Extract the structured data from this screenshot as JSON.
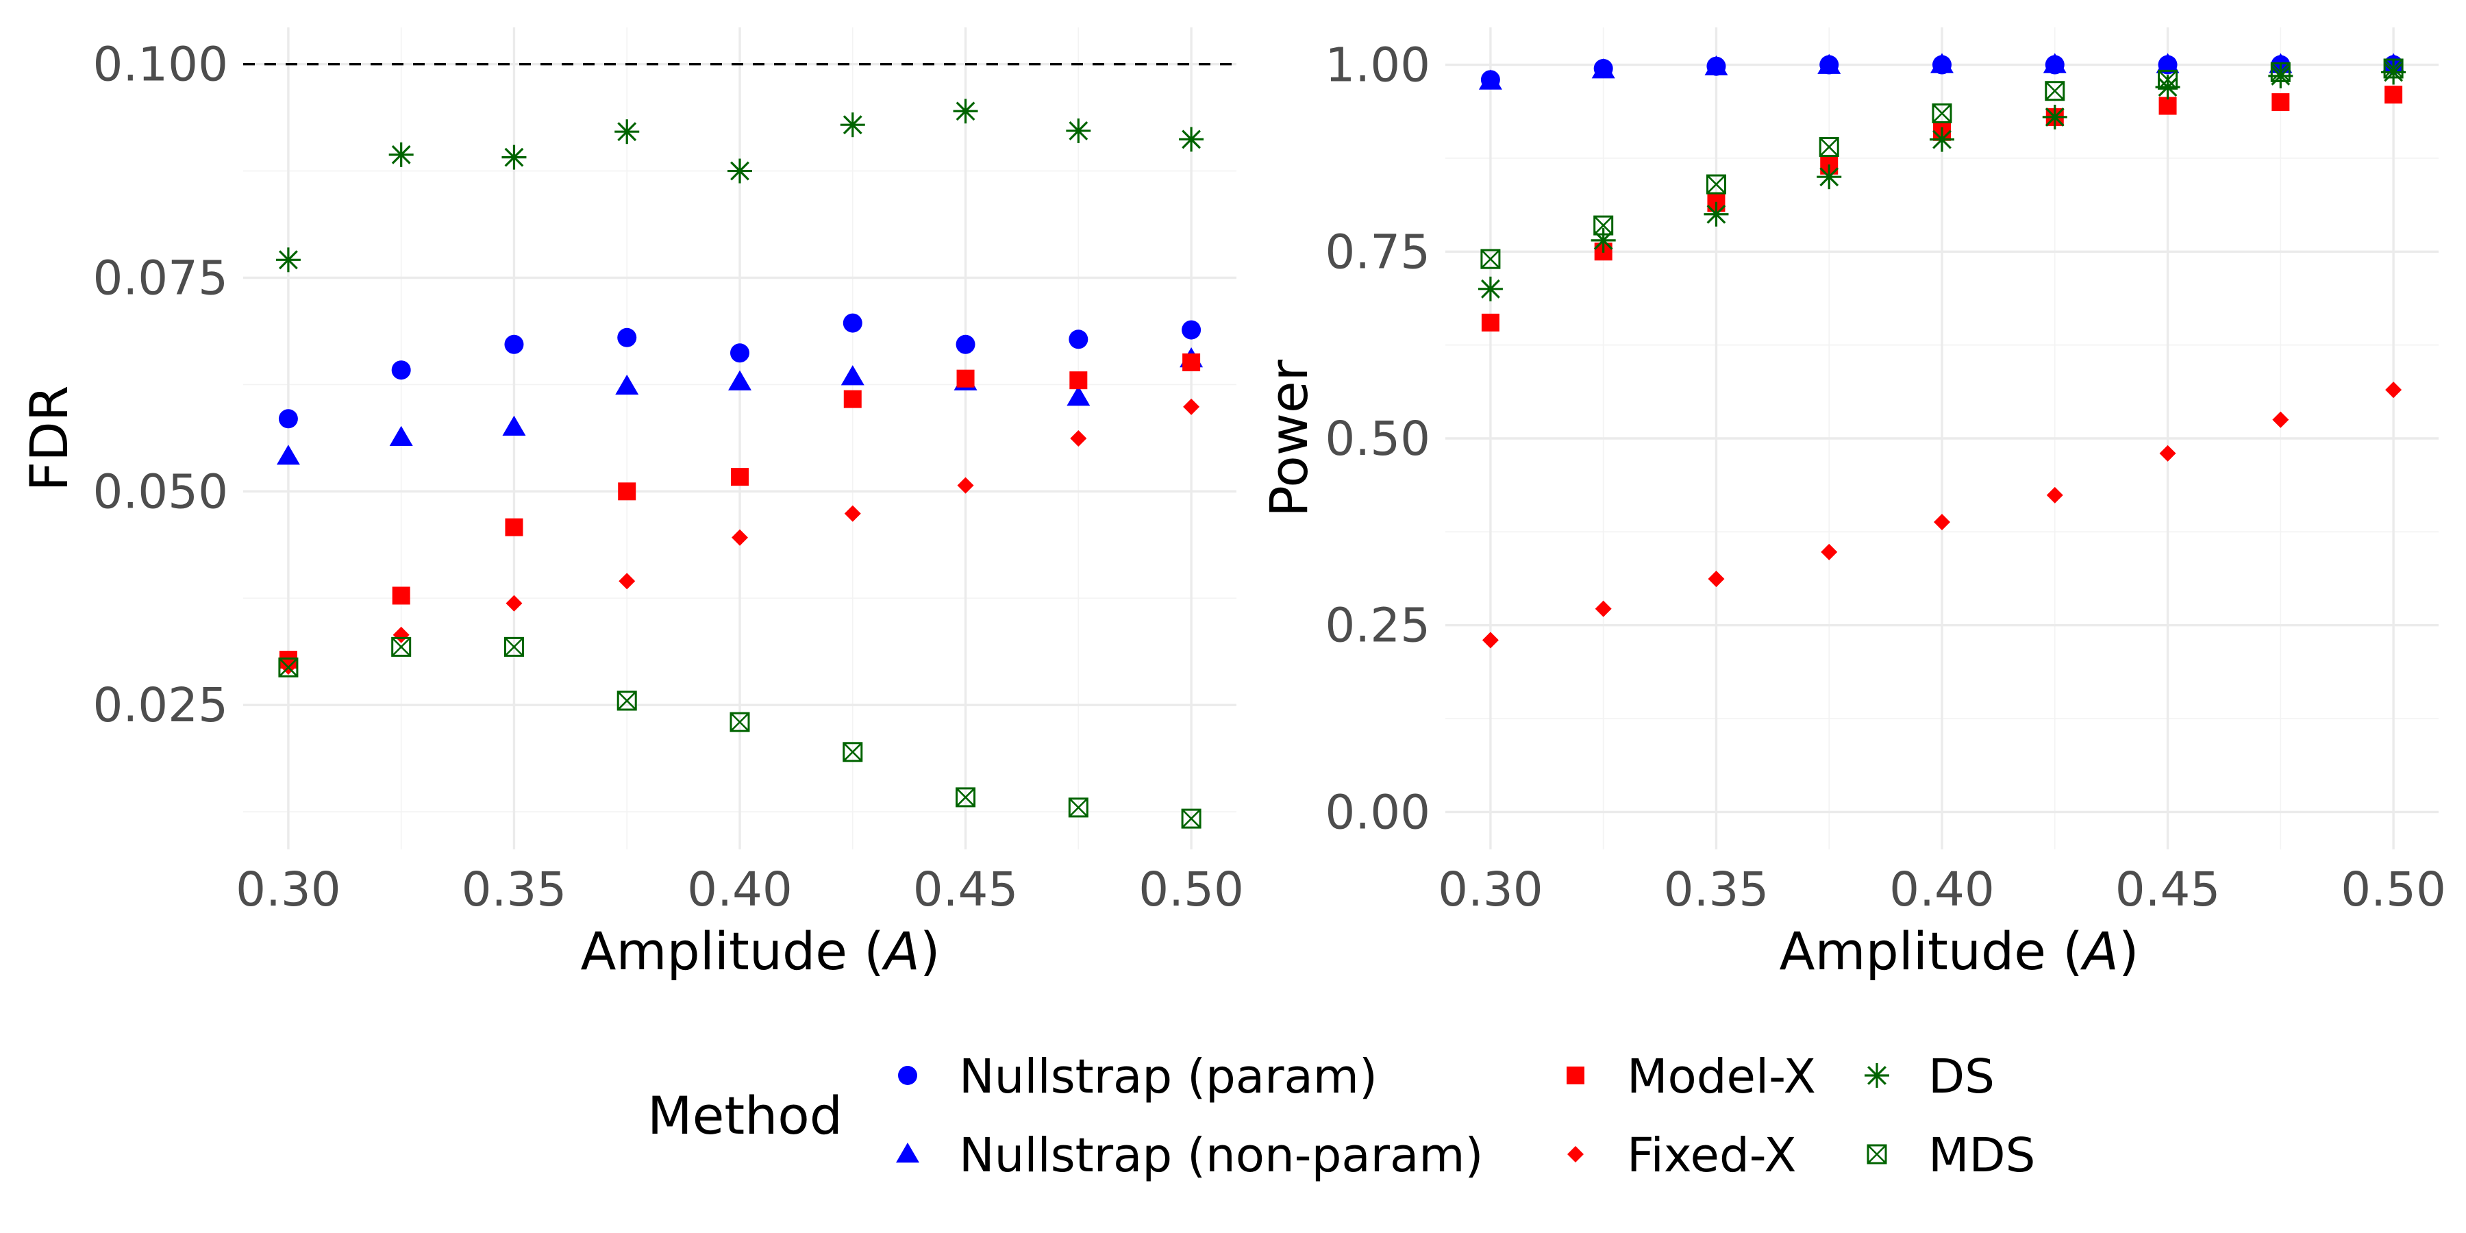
{
  "colors": {
    "Nullstrap (param)": "#0000ff",
    "Nullstrap (non-param)": "#0000ff",
    "Model-X": "#ff0000",
    "Fixed-X": "#ff0000",
    "DS": "#006400",
    "MDS": "#006400"
  },
  "legend": {
    "title": "Method",
    "entries": [
      {
        "label": "Nullstrap (param)",
        "shape": "circle"
      },
      {
        "label": "Nullstrap (non-param)",
        "shape": "triangle"
      },
      {
        "label": "Model-X",
        "shape": "square"
      },
      {
        "label": "Fixed-X",
        "shape": "diamond"
      },
      {
        "label": "DS",
        "shape": "asterisk"
      },
      {
        "label": "MDS",
        "shape": "boxed-x"
      }
    ]
  },
  "chart_data": [
    {
      "type": "scatter",
      "xlabel": "Amplitude (A)",
      "ylabel": "FDR",
      "xlim": [
        0.29,
        0.51
      ],
      "ylim": [
        0.0081,
        0.1043
      ],
      "xticks": [
        "0.30",
        "0.35",
        "0.40",
        "0.45",
        "0.50"
      ],
      "yticks": [
        "0.025",
        "0.050",
        "0.075",
        "0.100"
      ],
      "x": [
        0.3,
        0.325,
        0.35,
        0.375,
        0.4,
        0.425,
        0.45,
        0.475,
        0.5
      ],
      "reference_line": 0.1,
      "series": [
        {
          "name": "Nullstrap (param)",
          "shape": "circle",
          "values": [
            0.0585,
            0.0642,
            0.0672,
            0.068,
            0.0662,
            0.0697,
            0.0672,
            0.0678,
            0.0689
          ]
        },
        {
          "name": "Nullstrap (non-param)",
          "shape": "triangle",
          "values": [
            0.0541,
            0.0563,
            0.0575,
            0.0623,
            0.0628,
            0.0634,
            0.0628,
            0.061,
            0.0655
          ]
        },
        {
          "name": "Model-X",
          "shape": "square",
          "values": [
            0.0303,
            0.0378,
            0.0458,
            0.05,
            0.0517,
            0.0608,
            0.0632,
            0.063,
            0.0651
          ]
        },
        {
          "name": "Fixed-X",
          "shape": "diamond",
          "values": [
            0.0295,
            0.0332,
            0.0369,
            0.0395,
            0.0446,
            0.0474,
            0.0507,
            0.0562,
            0.0599
          ]
        },
        {
          "name": "DS",
          "shape": "asterisk",
          "values": [
            0.0771,
            0.0894,
            0.0891,
            0.0921,
            0.0875,
            0.0929,
            0.0945,
            0.0922,
            0.0912
          ]
        },
        {
          "name": "MDS",
          "shape": "boxed-x",
          "values": [
            0.0294,
            0.0318,
            0.0318,
            0.0255,
            0.023,
            0.0195,
            0.0142,
            0.013,
            0.0117
          ]
        }
      ]
    },
    {
      "type": "scatter",
      "xlabel": "Amplitude (A)",
      "ylabel": "Power",
      "xlim": [
        0.29,
        0.51
      ],
      "ylim": [
        -0.05,
        1.05
      ],
      "xticks": [
        "0.30",
        "0.35",
        "0.40",
        "0.45",
        "0.50"
      ],
      "yticks": [
        "0.00",
        "0.25",
        "0.50",
        "0.75",
        "1.00"
      ],
      "x": [
        0.3,
        0.325,
        0.35,
        0.375,
        0.4,
        0.425,
        0.45,
        0.475,
        0.5
      ],
      "series": [
        {
          "name": "Nullstrap (param)",
          "shape": "circle",
          "values": [
            0.98,
            0.995,
            0.998,
            1.0,
            1.0,
            1.0,
            1.0,
            1.0,
            1.0
          ]
        },
        {
          "name": "Nullstrap (non-param)",
          "shape": "triangle",
          "values": [
            0.978,
            0.993,
            0.997,
            0.999,
            1.0,
            1.0,
            1.0,
            1.0,
            1.0
          ]
        },
        {
          "name": "Model-X",
          "shape": "square",
          "values": [
            0.655,
            0.75,
            0.815,
            0.865,
            0.91,
            0.93,
            0.945,
            0.95,
            0.96
          ]
        },
        {
          "name": "Fixed-X",
          "shape": "diamond",
          "values": [
            0.23,
            0.272,
            0.312,
            0.348,
            0.388,
            0.424,
            0.48,
            0.525,
            0.565
          ]
        },
        {
          "name": "DS",
          "shape": "asterisk",
          "values": [
            0.7,
            0.765,
            0.8,
            0.85,
            0.9,
            0.93,
            0.97,
            0.985,
            0.99
          ]
        },
        {
          "name": "MDS",
          "shape": "boxed-x",
          "values": [
            0.74,
            0.785,
            0.84,
            0.89,
            0.935,
            0.965,
            0.98,
            0.99,
            0.995
          ]
        }
      ]
    }
  ]
}
